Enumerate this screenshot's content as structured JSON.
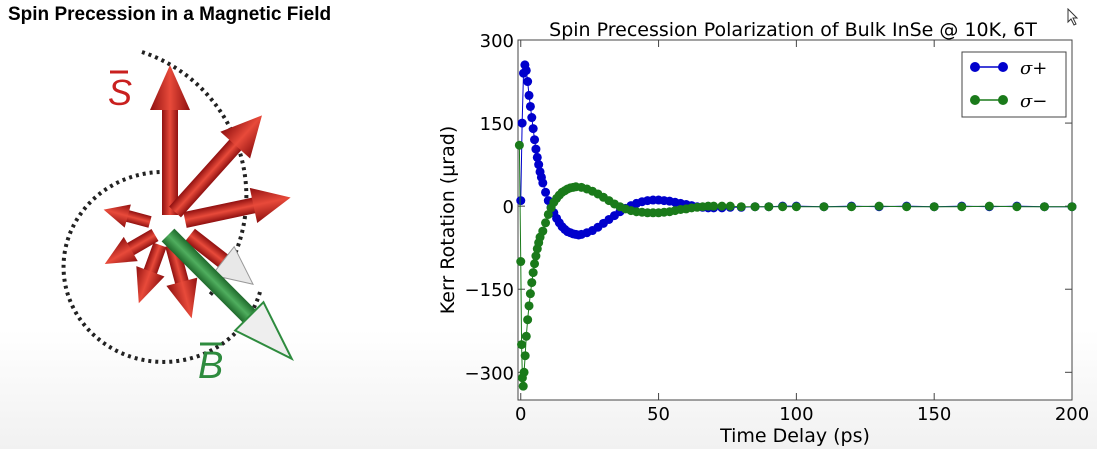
{
  "slide": {
    "title": "Spin Precession in a Magnetic Field"
  },
  "diagram": {
    "spin_label": "S",
    "field_label": "B",
    "colors": {
      "spin": "#c9201f",
      "field": "#2e8b3e",
      "circle": "#222222"
    }
  },
  "chart_data": {
    "type": "scatter",
    "title": "Spin Precession Polarization of Bulk InSe @ 10K, 6T",
    "xlabel": "Time Delay (ps)",
    "ylabel": "Kerr Rotation (μrad)",
    "xlim": [
      -1,
      200
    ],
    "ylim": [
      -350,
      300
    ],
    "xticks": [
      0,
      50,
      100,
      150,
      200
    ],
    "yticks": [
      300,
      150,
      0,
      -150,
      -300
    ],
    "xtick_labels": [
      "0",
      "50",
      "100",
      "150",
      "200"
    ],
    "ytick_labels": [
      "300",
      "150",
      "0",
      "−150",
      "−300"
    ],
    "grid": false,
    "legend_position": "top-right",
    "series": [
      {
        "name": "σ+",
        "color": "#0000cc",
        "points": [
          [
            0,
            10
          ],
          [
            0.5,
            150
          ],
          [
            1,
            240
          ],
          [
            1.5,
            255
          ],
          [
            2,
            245
          ],
          [
            2.5,
            225
          ],
          [
            3,
            200
          ],
          [
            3.5,
            180
          ],
          [
            4,
            160
          ],
          [
            4.5,
            140
          ],
          [
            5,
            120
          ],
          [
            5.5,
            103
          ],
          [
            6,
            88
          ],
          [
            6.5,
            75
          ],
          [
            7,
            62
          ],
          [
            7.5,
            52
          ],
          [
            8,
            42
          ],
          [
            9,
            25
          ],
          [
            10,
            10
          ],
          [
            11,
            -2
          ],
          [
            12,
            -12
          ],
          [
            13,
            -22
          ],
          [
            14,
            -30
          ],
          [
            15,
            -37
          ],
          [
            16,
            -42
          ],
          [
            17,
            -46
          ],
          [
            18,
            -48
          ],
          [
            19,
            -50
          ],
          [
            20,
            -51
          ],
          [
            21,
            -52
          ],
          [
            22,
            -51
          ],
          [
            24,
            -48
          ],
          [
            26,
            -44
          ],
          [
            28,
            -38
          ],
          [
            30,
            -31
          ],
          [
            32,
            -24
          ],
          [
            34,
            -17
          ],
          [
            36,
            -10
          ],
          [
            38,
            -4
          ],
          [
            40,
            1
          ],
          [
            42,
            5
          ],
          [
            44,
            8
          ],
          [
            46,
            10
          ],
          [
            48,
            11
          ],
          [
            50,
            11
          ],
          [
            52,
            10
          ],
          [
            54,
            9
          ],
          [
            56,
            7
          ],
          [
            58,
            5
          ],
          [
            60,
            3
          ],
          [
            62,
            1
          ],
          [
            64,
            -1
          ],
          [
            66,
            -2
          ],
          [
            68,
            -3
          ],
          [
            70,
            -3
          ],
          [
            73,
            -3
          ],
          [
            76,
            -2
          ],
          [
            80,
            -2
          ],
          [
            85,
            -1
          ],
          [
            90,
            -1
          ],
          [
            95,
            0
          ],
          [
            100,
            0
          ],
          [
            110,
            -1
          ],
          [
            120,
            0
          ],
          [
            130,
            -1
          ],
          [
            140,
            0
          ],
          [
            150,
            -1
          ],
          [
            160,
            0
          ],
          [
            170,
            -1
          ],
          [
            180,
            0
          ],
          [
            190,
            -1
          ],
          [
            200,
            -1
          ]
        ]
      },
      {
        "name": "σ−",
        "color": "#1a7a1a",
        "points": [
          [
            -0.5,
            110
          ],
          [
            0,
            -100
          ],
          [
            0.3,
            -250
          ],
          [
            0.6,
            -310
          ],
          [
            0.9,
            -325
          ],
          [
            1.2,
            -300
          ],
          [
            1.6,
            -270
          ],
          [
            2,
            -235
          ],
          [
            2.5,
            -205
          ],
          [
            3,
            -180
          ],
          [
            3.5,
            -158
          ],
          [
            4,
            -138
          ],
          [
            4.5,
            -120
          ],
          [
            5,
            -104
          ],
          [
            5.5,
            -90
          ],
          [
            6,
            -77
          ],
          [
            6.5,
            -66
          ],
          [
            7,
            -56
          ],
          [
            8,
            -45
          ],
          [
            9,
            -30
          ],
          [
            10,
            -15
          ],
          [
            11,
            -3
          ],
          [
            12,
            7
          ],
          [
            13,
            14
          ],
          [
            14,
            20
          ],
          [
            15,
            25
          ],
          [
            16,
            28
          ],
          [
            17,
            31
          ],
          [
            18,
            33
          ],
          [
            19,
            34
          ],
          [
            20,
            35
          ],
          [
            22,
            34
          ],
          [
            24,
            31
          ],
          [
            26,
            27
          ],
          [
            28,
            22
          ],
          [
            30,
            16
          ],
          [
            32,
            10
          ],
          [
            34,
            4
          ],
          [
            36,
            -1
          ],
          [
            38,
            -5
          ],
          [
            40,
            -8
          ],
          [
            42,
            -10
          ],
          [
            44,
            -11
          ],
          [
            46,
            -12
          ],
          [
            48,
            -12
          ],
          [
            50,
            -12
          ],
          [
            52,
            -11
          ],
          [
            54,
            -10
          ],
          [
            56,
            -8
          ],
          [
            58,
            -6
          ],
          [
            60,
            -5
          ],
          [
            62,
            -3
          ],
          [
            64,
            -2
          ],
          [
            66,
            -1
          ],
          [
            68,
            0
          ],
          [
            70,
            0
          ],
          [
            73,
            0
          ],
          [
            76,
            0
          ],
          [
            80,
            -1
          ],
          [
            85,
            -1
          ],
          [
            90,
            -1
          ],
          [
            95,
            -1
          ],
          [
            100,
            -1
          ],
          [
            110,
            -1
          ],
          [
            120,
            -1
          ],
          [
            130,
            0
          ],
          [
            140,
            -1
          ],
          [
            150,
            -1
          ],
          [
            160,
            -1
          ],
          [
            170,
            0
          ],
          [
            180,
            -1
          ],
          [
            190,
            -1
          ],
          [
            200,
            -1
          ]
        ]
      }
    ]
  }
}
